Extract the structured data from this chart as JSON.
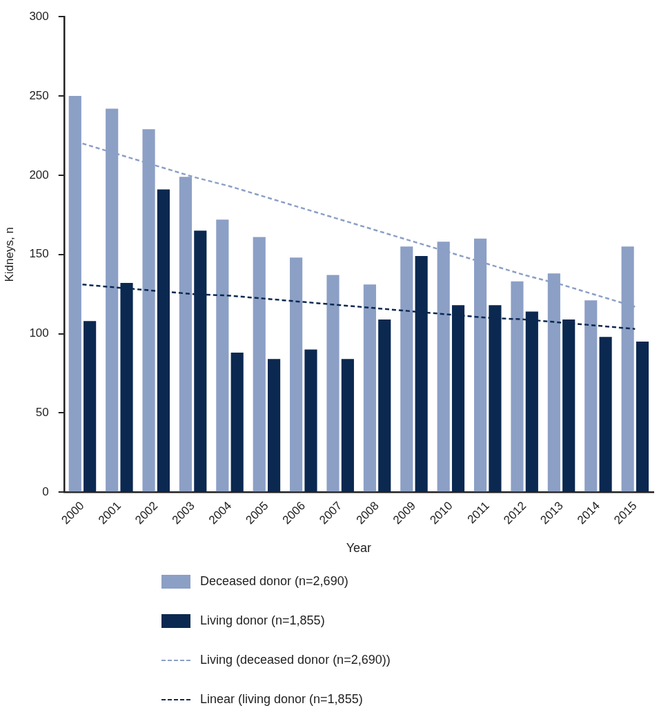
{
  "chart_data": {
    "type": "bar",
    "xlabel": "Year",
    "ylabel": "Kidneys, n",
    "categories": [
      "2000",
      "2001",
      "2002",
      "2003",
      "2004",
      "2005",
      "2006",
      "2007",
      "2008",
      "2009",
      "2010",
      "2011",
      "2012",
      "2013",
      "2014",
      "2015"
    ],
    "series": [
      {
        "name": "Deceased donor (n=2,690)",
        "color": "#8c9fc5",
        "values": [
          250,
          242,
          229,
          199,
          172,
          161,
          148,
          137,
          131,
          155,
          158,
          160,
          133,
          138,
          121,
          155
        ]
      },
      {
        "name": "Living donor (n=1,855)",
        "color": "#0b2850",
        "values": [
          108,
          132,
          191,
          165,
          88,
          84,
          90,
          84,
          109,
          149,
          118,
          118,
          114,
          109,
          98,
          95
        ]
      },
      {
        "name": "Living (deceased donor (n=2,690))",
        "type": "line",
        "line_style": "dashed",
        "color": "#8c9fc5",
        "values": [
          220,
          213,
          206,
          199,
          193,
          186,
          179,
          172,
          165,
          158,
          151,
          144,
          137,
          131,
          124,
          117
        ]
      },
      {
        "name": "Linear (living donor (n=1,855)",
        "type": "line",
        "line_style": "dashed",
        "color": "#0b2850",
        "values": [
          131,
          129,
          127,
          125,
          124,
          122,
          120,
          118,
          116,
          114,
          112,
          110,
          109,
          107,
          105,
          103
        ]
      }
    ],
    "ylim": [
      0,
      300
    ],
    "yticks": [
      0,
      50,
      100,
      150,
      200,
      250,
      300
    ],
    "grid": false,
    "legend": "bottom",
    "marker": "none"
  }
}
